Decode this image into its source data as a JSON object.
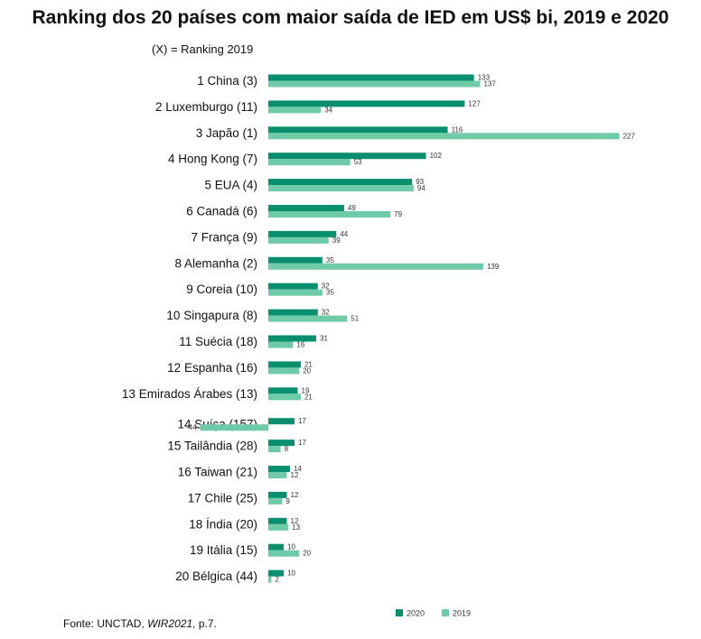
{
  "chart_data": {
    "type": "bar",
    "orientation": "horizontal",
    "title": "Ranking dos 20 países com maior saída de IED em US$ bi, 2019 e 2020",
    "subtitle": "(X) = Ranking 2019",
    "source": {
      "prefix": "Fonte: UNCTAD, ",
      "italic": "WIR2021",
      "suffix": ", p.7."
    },
    "categories": [
      "1 China (3)",
      "2 Luxemburgo (11)",
      "3 Japão (1)",
      "4 Hong Kong (7)",
      "5 EUA (4)",
      "6 Canadá (6)",
      "7 França (9)",
      "8 Alemanha (2)",
      "9 Coreia (10)",
      "10 Singapura (8)",
      "11 Suécia (18)",
      "12 Espanha (16)",
      "13 Emirados Árabes (13)",
      "14 Suíça (157)",
      "15 Tailândia (28)",
      "16 Taiwan (21)",
      "17 Chile (25)",
      "18 Índia (20)",
      "19 Itália (15)",
      "20 Bélgica (44)"
    ],
    "series": [
      {
        "name": "2020",
        "color": "#0a8f6e",
        "values": [
          133,
          127,
          116,
          102,
          93,
          49,
          44,
          35,
          32,
          32,
          31,
          21,
          19,
          17,
          17,
          14,
          12,
          12,
          10,
          10
        ]
      },
      {
        "name": "2019",
        "color": "#6fcaa8",
        "values": [
          137,
          34,
          227,
          53,
          94,
          79,
          39,
          139,
          35,
          51,
          16,
          20,
          21,
          -44,
          8,
          12,
          9,
          13,
          20,
          2
        ]
      }
    ],
    "legend_position": "bottom-right",
    "grid": false
  }
}
